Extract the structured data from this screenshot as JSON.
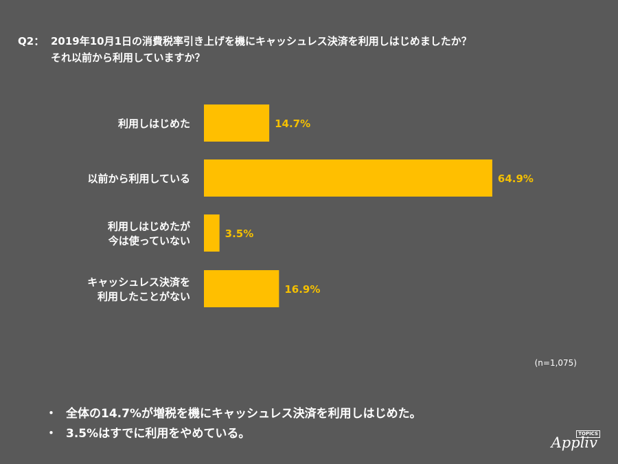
{
  "question": {
    "prefix": "Q2：",
    "line1": "2019年10月1日の消費税率引き上げを機にキャッシュレス決済を利用しはじめましたか？",
    "line2": "それ以前から利用していますか？"
  },
  "chart_data": {
    "type": "bar",
    "orientation": "horizontal",
    "categories": [
      [
        "利用しはじめた"
      ],
      [
        "以前から利用している"
      ],
      [
        "利用しはじめたが",
        "今は使っていない"
      ],
      [
        "キャッシュレス決済を",
        "利用したことがない"
      ]
    ],
    "values": [
      14.7,
      64.9,
      3.5,
      16.9
    ],
    "value_labels": [
      "14.7%",
      "64.9%",
      "3.5%",
      "16.9%"
    ],
    "xlim": [
      0,
      100
    ],
    "bar_color": "#ffbf00",
    "value_label_color": "#f5c000",
    "grid": false,
    "note": "(n=1,075)"
  },
  "summary": {
    "bullets": [
      "全体の14.7%が増税を機にキャッシュレス決済を利用しはじめた。",
      "3.5%はすでに利用をやめている。"
    ],
    "bullet_char": "・"
  },
  "logo": {
    "text": "Appliv",
    "tag": "TOPICS"
  },
  "colors": {
    "background": "#595959",
    "text": "#ffffff"
  }
}
